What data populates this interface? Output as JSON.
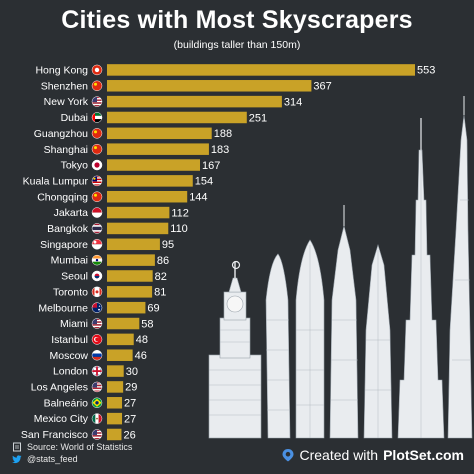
{
  "title": "Cities with Most Skyscrapers",
  "subtitle": "(buildings taller than 150m)",
  "chart_data": {
    "type": "bar",
    "orientation": "horizontal",
    "categories": [
      "Hong Kong",
      "Shenzhen",
      "New York",
      "Dubai",
      "Guangzhou",
      "Shanghai",
      "Tokyo",
      "Kuala Lumpur",
      "Chongqing",
      "Jakarta",
      "Bangkok",
      "Singapore",
      "Mumbai",
      "Seoul",
      "Toronto",
      "Melbourne",
      "Miami",
      "Istanbul",
      "Moscow",
      "London",
      "Los Angeles",
      "Balneário",
      "Mexico City",
      "San Francisco"
    ],
    "values": [
      553,
      367,
      314,
      251,
      188,
      183,
      167,
      154,
      144,
      112,
      110,
      95,
      86,
      82,
      81,
      69,
      58,
      48,
      46,
      30,
      29,
      27,
      27,
      26
    ],
    "flags": [
      "hk",
      "cn",
      "us",
      "ae",
      "cn",
      "cn",
      "jp",
      "my",
      "cn",
      "id",
      "th",
      "sg",
      "in",
      "kr",
      "ca",
      "au",
      "us",
      "tr",
      "ru",
      "gb",
      "us",
      "br",
      "mx",
      "us"
    ],
    "xlim": [
      0,
      553
    ],
    "bar_color": "#c9a227",
    "grid": false,
    "legend": "none"
  },
  "footer": {
    "source": "Source: World of Statistics",
    "handle": "@stats_feed",
    "created_with": "Created with",
    "brand": "PlotSet.com"
  }
}
